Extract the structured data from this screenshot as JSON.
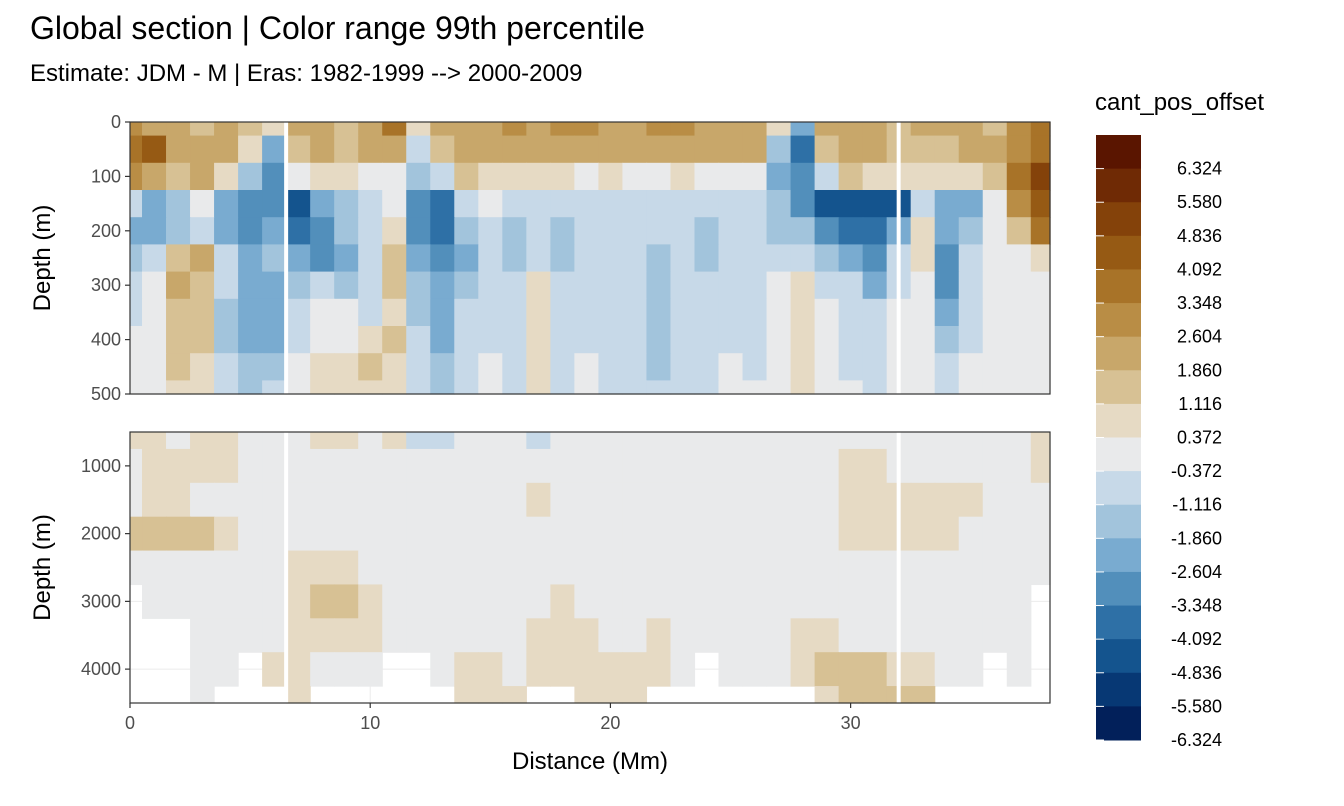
{
  "title": "Global section | Color range 99th percentile",
  "subtitle": "Estimate: JDM - M | Eras: 1982-1999 --> 2000-2009",
  "chart_data": {
    "type": "heatmap",
    "xlabel": "Distance (Mm)",
    "x_ticks": [
      "0",
      "10",
      "20",
      "30"
    ],
    "x_tick_values": [
      0,
      10,
      20,
      30
    ],
    "xlim": [
      0,
      38.3
    ],
    "panels": [
      {
        "ylabel": "Depth (m)",
        "ylim": [
          0,
          500
        ],
        "y_reversed": true,
        "y_ticks": [
          "0",
          "100",
          "200",
          "300",
          "400",
          "500"
        ],
        "y_tick_values": [
          0,
          100,
          200,
          300,
          400,
          500
        ]
      },
      {
        "ylabel": "Depth (m)",
        "ylim": [
          500,
          4500
        ],
        "y_reversed": true,
        "y_ticks": [
          "1000",
          "2000",
          "3000",
          "4000"
        ],
        "y_tick_values": [
          1000,
          2000,
          3000,
          4000
        ]
      }
    ],
    "gap_lines_x": [
      6.5,
      32.0
    ],
    "legend": {
      "title": "cant_pos_offset",
      "labels": [
        "6.324",
        "5.580",
        "4.836",
        "4.092",
        "3.348",
        "2.604",
        "1.860",
        "1.116",
        "0.372",
        "-0.372",
        "-1.116",
        "-1.860",
        "-2.604",
        "-3.348",
        "-4.092",
        "-4.836",
        "-5.580",
        "-6.324"
      ],
      "colors": [
        "#5a1500",
        "#6f2a05",
        "#84420a",
        "#965a14",
        "#a87328",
        "#b98d45",
        "#c8a76a",
        "#d7c194",
        "#e6dac4",
        "#e9eaeb",
        "#c7d9e8",
        "#a2c4dc",
        "#79abd0",
        "#528fbb",
        "#2e70a6",
        "#14548e",
        "#073874",
        "#02205a"
      ]
    },
    "field_upper": {
      "x": [
        0,
        1,
        2,
        3,
        4,
        5,
        6,
        7,
        8,
        9,
        10,
        11,
        12,
        13,
        14,
        15,
        16,
        17,
        18,
        19,
        20,
        21,
        22,
        23,
        24,
        25,
        26,
        27,
        28,
        29,
        30,
        31,
        32,
        33,
        34,
        35,
        36,
        37,
        38
      ],
      "depth": [
        0,
        50,
        100,
        150,
        200,
        250,
        300,
        350,
        400,
        450,
        500
      ],
      "values": [
        [
          2.6,
          2.2,
          1.5,
          1.2,
          1.5,
          1.2,
          0.5,
          1.8,
          1.5,
          1.2,
          2.2,
          3.5,
          0.5,
          1.8,
          2.2,
          1.8,
          2.6,
          2.2,
          2.6,
          2.6,
          2.2,
          2.2,
          2.6,
          2.6,
          2.2,
          2.2,
          1.8,
          0.5,
          -2.6,
          1.8,
          2.2,
          1.8,
          1.2,
          1.5,
          1.8,
          1.5,
          1.2,
          2.6,
          3.0
        ],
        [
          3.3,
          4.0,
          1.5,
          2.2,
          1.8,
          0.4,
          -2.6,
          1.2,
          1.5,
          1.2,
          1.5,
          1.8,
          -1.2,
          1.2,
          1.8,
          1.5,
          2.2,
          1.8,
          2.2,
          1.8,
          1.8,
          1.8,
          1.8,
          1.8,
          1.8,
          1.8,
          1.5,
          -1.8,
          -4.0,
          1.2,
          1.8,
          1.5,
          1.2,
          1.2,
          1.2,
          1.5,
          1.8,
          2.6,
          3.5
        ],
        [
          2.6,
          2.2,
          1.2,
          1.5,
          0.5,
          -1.8,
          -3.3,
          -0.4,
          0.4,
          0.4,
          -0.4,
          -0.4,
          -1.8,
          -1.2,
          1.2,
          0.4,
          0.4,
          0.4,
          0.4,
          -0.4,
          0.4,
          -0.4,
          -0.4,
          0.4,
          -0.4,
          -0.4,
          -0.4,
          -2.6,
          -3.3,
          -1.2,
          1.2,
          0.4,
          0.4,
          0.4,
          0.4,
          0.4,
          1.2,
          3.0,
          4.6
        ],
        [
          -1.2,
          -2.6,
          -1.8,
          -0.4,
          -2.6,
          -3.3,
          -3.3,
          -4.8,
          -2.6,
          -1.8,
          -1.2,
          -0.4,
          -3.3,
          -4.0,
          -1.2,
          -0.4,
          -1.2,
          -1.2,
          -1.2,
          -1.2,
          -1.2,
          -1.2,
          -1.2,
          -1.2,
          -1.2,
          -1.2,
          -1.2,
          -1.8,
          -3.3,
          -5.2,
          -5.2,
          -5.2,
          -5.2,
          -1.2,
          -2.6,
          -2.6,
          -0.4,
          2.6,
          4.0
        ],
        [
          -2.6,
          -2.6,
          -1.8,
          -1.2,
          -2.6,
          -3.3,
          -2.6,
          -4.0,
          -3.3,
          -1.8,
          -1.2,
          0.4,
          -3.3,
          -4.0,
          -1.8,
          -1.2,
          -1.8,
          -1.2,
          -1.8,
          -1.2,
          -1.2,
          -1.2,
          -1.2,
          -1.2,
          -1.8,
          -1.2,
          -1.2,
          -1.8,
          -1.8,
          -3.3,
          -4.0,
          -4.4,
          -2.6,
          0.4,
          -2.6,
          -1.8,
          -0.4,
          1.2,
          3.0
        ],
        [
          -1.8,
          -1.2,
          1.2,
          1.5,
          -1.2,
          -2.6,
          -1.8,
          -2.6,
          -3.3,
          -2.6,
          -1.2,
          1.2,
          -2.6,
          -3.3,
          -2.6,
          -1.2,
          -1.8,
          -1.2,
          -1.8,
          -1.2,
          -1.2,
          -1.2,
          -1.8,
          -1.2,
          -1.8,
          -1.2,
          -1.2,
          -1.2,
          -1.2,
          -1.8,
          -2.6,
          -3.3,
          -1.2,
          0.4,
          -3.3,
          -1.2,
          -0.4,
          -0.4,
          0.4
        ],
        [
          -1.2,
          -0.4,
          1.5,
          1.2,
          -1.2,
          -2.6,
          -2.6,
          -1.8,
          -1.2,
          -1.8,
          -1.2,
          1.2,
          -1.8,
          -2.6,
          -1.8,
          -1.2,
          -1.2,
          0.4,
          -1.2,
          -1.2,
          -1.2,
          -1.2,
          -1.8,
          -1.2,
          -1.2,
          -1.2,
          -1.2,
          -0.4,
          0.4,
          -1.2,
          -1.2,
          -2.6,
          -1.2,
          -0.4,
          -3.3,
          -1.2,
          -0.4,
          -0.4,
          -0.4
        ],
        [
          -1.2,
          -0.4,
          1.2,
          1.2,
          -1.8,
          -2.6,
          -2.6,
          -1.2,
          -0.4,
          -0.4,
          -1.2,
          0.4,
          -1.8,
          -2.6,
          -1.2,
          -1.2,
          -1.2,
          0.4,
          -1.2,
          -1.2,
          -1.2,
          -1.2,
          -1.8,
          -1.2,
          -1.2,
          -1.2,
          -1.2,
          -0.4,
          0.4,
          -0.4,
          -1.2,
          -1.2,
          -0.4,
          -0.4,
          -2.6,
          -1.2,
          -0.4,
          -0.4,
          -0.4
        ],
        [
          -0.4,
          -0.4,
          1.2,
          1.2,
          -1.8,
          -2.6,
          -2.6,
          -1.2,
          -0.4,
          -0.4,
          0.4,
          1.2,
          -1.2,
          -2.6,
          -1.2,
          -1.2,
          -1.2,
          0.4,
          -1.2,
          -1.2,
          -1.2,
          -1.2,
          -1.8,
          -1.2,
          -1.2,
          -1.2,
          -1.2,
          -0.4,
          0.4,
          -0.4,
          -1.2,
          -1.2,
          -0.4,
          -0.4,
          -1.8,
          -1.2,
          -0.4,
          -0.4,
          -0.4
        ],
        [
          -0.4,
          -0.4,
          1.2,
          0.4,
          -1.2,
          -1.8,
          -1.8,
          -0.4,
          0.4,
          0.4,
          1.2,
          0.4,
          -1.2,
          -1.8,
          -1.2,
          -0.4,
          -1.2,
          0.4,
          -1.2,
          -0.4,
          -1.2,
          -1.2,
          -1.8,
          -1.2,
          -1.2,
          -0.4,
          -1.2,
          -0.4,
          0.4,
          -0.4,
          -1.2,
          -1.2,
          -0.4,
          -0.4,
          -1.2,
          -0.4,
          -0.4,
          -0.4,
          -0.4
        ],
        [
          -0.4,
          -0.4,
          0.4,
          0.4,
          -1.2,
          -1.8,
          -1.2,
          -0.4,
          0.4,
          0.4,
          0.4,
          0.4,
          -1.2,
          -1.8,
          -1.2,
          -0.4,
          -1.2,
          0.4,
          -1.2,
          -0.4,
          -1.2,
          -1.2,
          -1.2,
          -1.2,
          -1.2,
          -0.4,
          -0.4,
          -0.4,
          0.4,
          -0.4,
          -0.4,
          -1.2,
          -0.4,
          -0.4,
          -1.2,
          -0.4,
          -0.4,
          -0.4,
          -0.4
        ]
      ]
    },
    "field_lower": {
      "x": [
        0,
        1,
        2,
        3,
        4,
        5,
        6,
        7,
        8,
        9,
        10,
        11,
        12,
        13,
        14,
        15,
        16,
        17,
        18,
        19,
        20,
        21,
        22,
        23,
        24,
        25,
        26,
        27,
        28,
        29,
        30,
        31,
        32,
        33,
        34,
        35,
        36,
        37,
        38
      ],
      "depth": [
        500,
        1000,
        1500,
        2000,
        2500,
        3000,
        3500,
        4000,
        4500
      ],
      "values": [
        [
          0.4,
          0.4,
          -0.4,
          0.4,
          0.4,
          -0.4,
          -0.4,
          -0.4,
          0.4,
          0.4,
          -0.4,
          0.4,
          -1.2,
          -1.2,
          -0.4,
          -0.4,
          -0.4,
          -1.2,
          -0.4,
          -0.4,
          -0.4,
          -0.4,
          -0.4,
          -0.4,
          -0.4,
          -0.4,
          -0.4,
          -0.4,
          -0.4,
          -0.4,
          -0.4,
          -0.4,
          -0.4,
          -0.4,
          -0.4,
          -0.4,
          -0.4,
          -0.4,
          0.4
        ],
        [
          -0.4,
          0.4,
          0.4,
          0.4,
          0.4,
          -0.4,
          -0.4,
          -0.4,
          -0.4,
          -0.4,
          -0.4,
          -0.4,
          -0.4,
          -0.4,
          -0.4,
          -0.4,
          -0.4,
          -0.4,
          -0.4,
          -0.4,
          -0.4,
          -0.4,
          -0.4,
          -0.4,
          -0.4,
          -0.4,
          -0.4,
          -0.4,
          -0.4,
          -0.4,
          0.4,
          0.4,
          -0.4,
          -0.4,
          -0.4,
          -0.4,
          -0.4,
          -0.4,
          0.4
        ],
        [
          -0.4,
          0.4,
          0.4,
          -0.4,
          -0.4,
          -0.4,
          -0.4,
          -0.4,
          -0.4,
          -0.4,
          -0.4,
          -0.4,
          -0.4,
          -0.4,
          -0.4,
          -0.4,
          -0.4,
          0.4,
          -0.4,
          -0.4,
          -0.4,
          -0.4,
          -0.4,
          -0.4,
          -0.4,
          -0.4,
          -0.4,
          -0.4,
          -0.4,
          -0.4,
          0.4,
          0.4,
          0.4,
          0.4,
          0.4,
          0.4,
          -0.4,
          -0.4,
          -0.4
        ],
        [
          1.2,
          1.2,
          1.2,
          1.2,
          0.4,
          -0.4,
          -0.4,
          -0.4,
          -0.4,
          -0.4,
          -0.4,
          -0.4,
          -0.4,
          -0.4,
          -0.4,
          -0.4,
          -0.4,
          -0.4,
          -0.4,
          -0.4,
          -0.4,
          -0.4,
          -0.4,
          -0.4,
          -0.4,
          -0.4,
          -0.4,
          -0.4,
          -0.4,
          -0.4,
          0.4,
          0.4,
          0.4,
          0.4,
          0.4,
          -0.4,
          -0.4,
          -0.4,
          -0.4
        ],
        [
          -0.4,
          -0.4,
          -0.4,
          -0.4,
          -0.4,
          -0.4,
          -0.4,
          0.4,
          0.4,
          0.4,
          -0.4,
          -0.4,
          -0.4,
          -0.4,
          -0.4,
          -0.4,
          -0.4,
          -0.4,
          -0.4,
          -0.4,
          -0.4,
          -0.4,
          -0.4,
          -0.4,
          -0.4,
          -0.4,
          -0.4,
          -0.4,
          -0.4,
          -0.4,
          -0.4,
          -0.4,
          -0.4,
          -0.4,
          -0.4,
          -0.4,
          -0.4,
          -0.4,
          -0.4
        ],
        [
          null,
          -0.4,
          -0.4,
          -0.4,
          -0.4,
          -0.4,
          -0.4,
          0.4,
          1.2,
          1.2,
          0.4,
          -0.4,
          -0.4,
          -0.4,
          -0.4,
          -0.4,
          -0.4,
          -0.4,
          0.4,
          -0.4,
          -0.4,
          -0.4,
          -0.4,
          -0.4,
          -0.4,
          -0.4,
          -0.4,
          -0.4,
          -0.4,
          -0.4,
          -0.4,
          -0.4,
          -0.4,
          -0.4,
          -0.4,
          -0.4,
          -0.4,
          -0.4,
          null
        ],
        [
          null,
          null,
          null,
          -0.4,
          -0.4,
          -0.4,
          -0.4,
          0.4,
          0.4,
          0.4,
          0.4,
          -0.4,
          -0.4,
          -0.4,
          -0.4,
          -0.4,
          -0.4,
          0.4,
          0.4,
          0.4,
          -0.4,
          -0.4,
          0.4,
          -0.4,
          -0.4,
          -0.4,
          -0.4,
          -0.4,
          0.4,
          0.4,
          -0.4,
          -0.4,
          -0.4,
          -0.4,
          -0.4,
          -0.4,
          -0.4,
          -0.4,
          null
        ],
        [
          null,
          null,
          null,
          -0.4,
          -0.4,
          null,
          0.4,
          0.4,
          -0.4,
          -0.4,
          -0.4,
          null,
          null,
          -0.4,
          0.4,
          0.4,
          -0.4,
          0.4,
          0.4,
          0.4,
          0.4,
          0.4,
          0.4,
          -0.4,
          null,
          -0.4,
          -0.4,
          -0.4,
          0.4,
          1.2,
          1.2,
          1.2,
          0.4,
          0.4,
          -0.4,
          -0.4,
          null,
          -0.4,
          null
        ],
        [
          null,
          null,
          null,
          -0.4,
          null,
          null,
          null,
          0.4,
          null,
          null,
          null,
          null,
          null,
          null,
          0.4,
          0.4,
          0.4,
          null,
          null,
          0.4,
          0.4,
          0.4,
          null,
          null,
          null,
          null,
          null,
          null,
          null,
          0.4,
          1.2,
          1.2,
          1.2,
          1.2,
          null,
          null,
          null,
          null,
          null
        ]
      ]
    }
  }
}
